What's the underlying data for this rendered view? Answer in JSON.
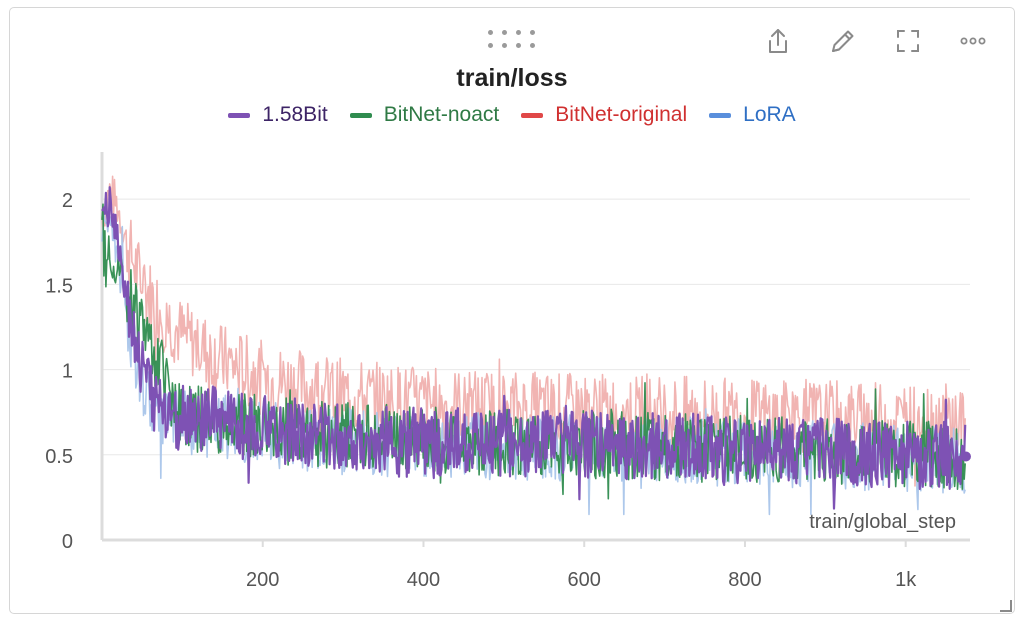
{
  "panel": {
    "title": "train/loss",
    "toolbar": [
      {
        "name": "share-icon"
      },
      {
        "name": "edit-icon"
      },
      {
        "name": "fullscreen-icon"
      },
      {
        "name": "more-options-icon"
      }
    ]
  },
  "chart_data": {
    "type": "line",
    "title": "train/loss",
    "xlabel": "train/global_step",
    "ylabel": "",
    "xlim": [
      0,
      1080
    ],
    "ylim": [
      0,
      2.3
    ],
    "x_ticks": [
      {
        "value": 200,
        "label": "200"
      },
      {
        "value": 400,
        "label": "400"
      },
      {
        "value": 600,
        "label": "600"
      },
      {
        "value": 800,
        "label": "800"
      },
      {
        "value": 1000,
        "label": "1k"
      }
    ],
    "y_ticks": [
      {
        "value": 0,
        "label": "0"
      },
      {
        "value": 0.5,
        "label": "0.5"
      },
      {
        "value": 1,
        "label": "1"
      },
      {
        "value": 1.5,
        "label": "1.5"
      },
      {
        "value": 2,
        "label": "2"
      }
    ],
    "grid": true,
    "legend_position": "top-center",
    "series": [
      {
        "name": "1.58Bit",
        "color": "#7e52b4",
        "legend_text_color": "#3d2466",
        "x": [
          0,
          10,
          20,
          30,
          40,
          50,
          60,
          80,
          100,
          150,
          200,
          300,
          400,
          500,
          600,
          700,
          800,
          900,
          1000,
          1075
        ],
        "y": [
          1.85,
          2.0,
          1.75,
          1.45,
          1.2,
          1.0,
          0.85,
          0.75,
          0.72,
          0.7,
          0.65,
          0.6,
          0.58,
          0.57,
          0.56,
          0.55,
          0.53,
          0.52,
          0.5,
          0.49
        ]
      },
      {
        "name": "BitNet-noact",
        "color": "#2f8c4f",
        "legend_text_color": "#2f7a45",
        "x": [
          0,
          100,
          200,
          400,
          600,
          800,
          1000,
          1075
        ],
        "y": [
          1.8,
          0.72,
          0.65,
          0.58,
          0.56,
          0.53,
          0.5,
          0.49
        ]
      },
      {
        "name": "BitNet-original",
        "color": "#f0b0ae",
        "legend_text_color": "#d03030",
        "x": [
          0,
          10,
          20,
          30,
          50,
          80,
          100,
          150,
          200,
          300,
          400,
          500,
          600,
          700,
          800,
          900,
          1000,
          1075
        ],
        "y": [
          1.9,
          2.05,
          1.95,
          1.75,
          1.5,
          1.3,
          1.2,
          1.05,
          0.95,
          0.85,
          0.8,
          0.78,
          0.76,
          0.75,
          0.73,
          0.72,
          0.7,
          0.7
        ]
      },
      {
        "name": "LoRA",
        "color": "#a9c5ea",
        "legend_text_color": "#2f6fc4",
        "x": [
          0,
          10,
          20,
          30,
          40,
          50,
          60,
          80,
          100,
          150,
          200,
          300,
          400,
          500,
          600,
          700,
          800,
          900,
          1000,
          1075
        ],
        "y": [
          1.8,
          1.9,
          1.65,
          1.35,
          1.1,
          0.95,
          0.8,
          0.7,
          0.68,
          0.66,
          0.62,
          0.58,
          0.56,
          0.55,
          0.54,
          0.53,
          0.51,
          0.5,
          0.48,
          0.47
        ]
      }
    ],
    "last_point": {
      "series": "1.58Bit",
      "x": 1075,
      "y": 0.49
    }
  }
}
